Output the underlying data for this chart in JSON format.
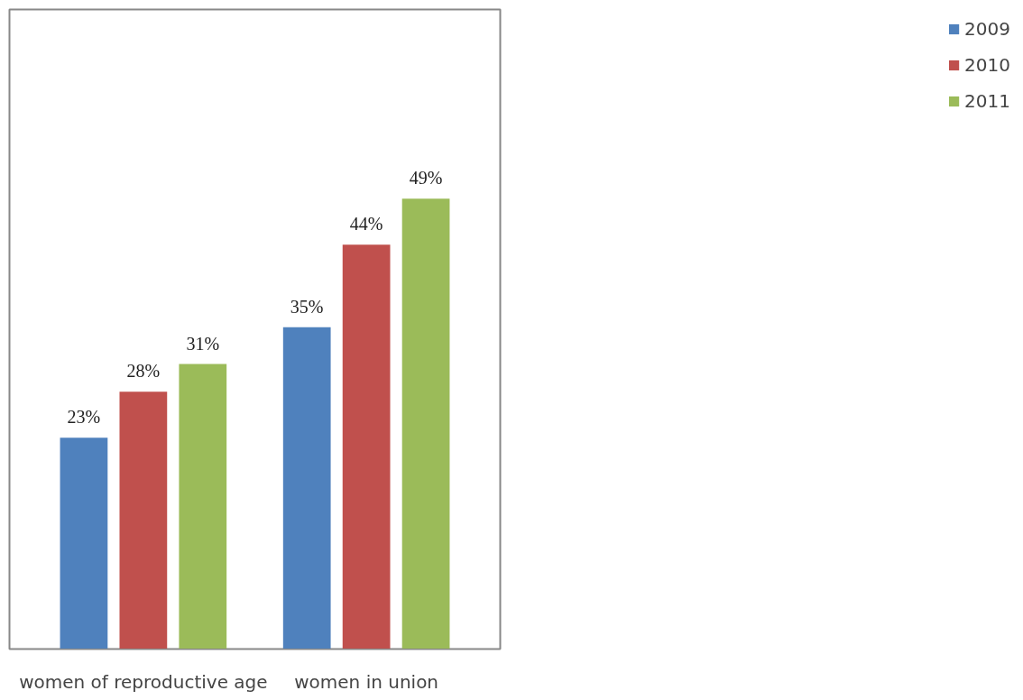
{
  "chart_data": {
    "type": "bar",
    "categories": [
      "women of reproductive age",
      "women in union"
    ],
    "series": [
      {
        "name": "2009",
        "color": "#4f81bd",
        "values": [
          23,
          35
        ],
        "value_labels": [
          "23%",
          "35%"
        ]
      },
      {
        "name": "2010",
        "color": "#c0504d",
        "values": [
          28,
          44
        ],
        "value_labels": [
          "28%",
          "44%"
        ]
      },
      {
        "name": "2011",
        "color": "#9bbb59",
        "values": [
          31,
          49
        ],
        "value_labels": [
          "31%",
          "49%"
        ]
      }
    ],
    "legend": "right",
    "grid": false
  }
}
